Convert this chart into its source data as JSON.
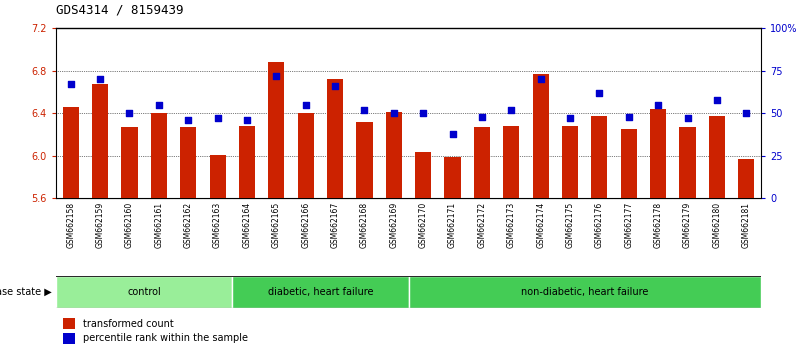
{
  "title": "GDS4314 / 8159439",
  "samples": [
    "GSM662158",
    "GSM662159",
    "GSM662160",
    "GSM662161",
    "GSM662162",
    "GSM662163",
    "GSM662164",
    "GSM662165",
    "GSM662166",
    "GSM662167",
    "GSM662168",
    "GSM662169",
    "GSM662170",
    "GSM662171",
    "GSM662172",
    "GSM662173",
    "GSM662174",
    "GSM662175",
    "GSM662176",
    "GSM662177",
    "GSM662178",
    "GSM662179",
    "GSM662180",
    "GSM662181"
  ],
  "red_values": [
    6.46,
    6.68,
    6.27,
    6.4,
    6.27,
    6.01,
    6.28,
    6.88,
    6.4,
    6.72,
    6.32,
    6.41,
    6.04,
    5.99,
    6.27,
    6.28,
    6.77,
    6.28,
    6.37,
    6.25,
    6.44,
    6.27,
    6.37,
    5.97
  ],
  "blue_values": [
    67,
    70,
    50,
    55,
    46,
    47,
    46,
    72,
    55,
    66,
    52,
    50,
    50,
    38,
    48,
    52,
    70,
    47,
    62,
    48,
    55,
    47,
    58,
    50
  ],
  "groups": [
    {
      "label": "control",
      "start": 0,
      "end": 5,
      "color": "#99EE99"
    },
    {
      "label": "diabetic, heart failure",
      "start": 6,
      "end": 11,
      "color": "#44CC55"
    },
    {
      "label": "non-diabetic, heart failure",
      "start": 12,
      "end": 23,
      "color": "#44CC55"
    }
  ],
  "ylim_left": [
    5.6,
    7.2
  ],
  "ylim_right": [
    0,
    100
  ],
  "yticks_left": [
    5.6,
    6.0,
    6.4,
    6.8,
    7.2
  ],
  "yticks_right": [
    0,
    25,
    50,
    75,
    100
  ],
  "ytick_right_labels": [
    "0",
    "25",
    "50",
    "75",
    "100%"
  ],
  "bar_color": "#CC2200",
  "dot_color": "#0000CC",
  "tick_bg_color": "#CCCCCC",
  "plot_bg": "#FFFFFF",
  "grid_color": "#000000",
  "legend_red": "transformed count",
  "legend_blue": "percentile rank within the sample",
  "disease_label": "disease state"
}
